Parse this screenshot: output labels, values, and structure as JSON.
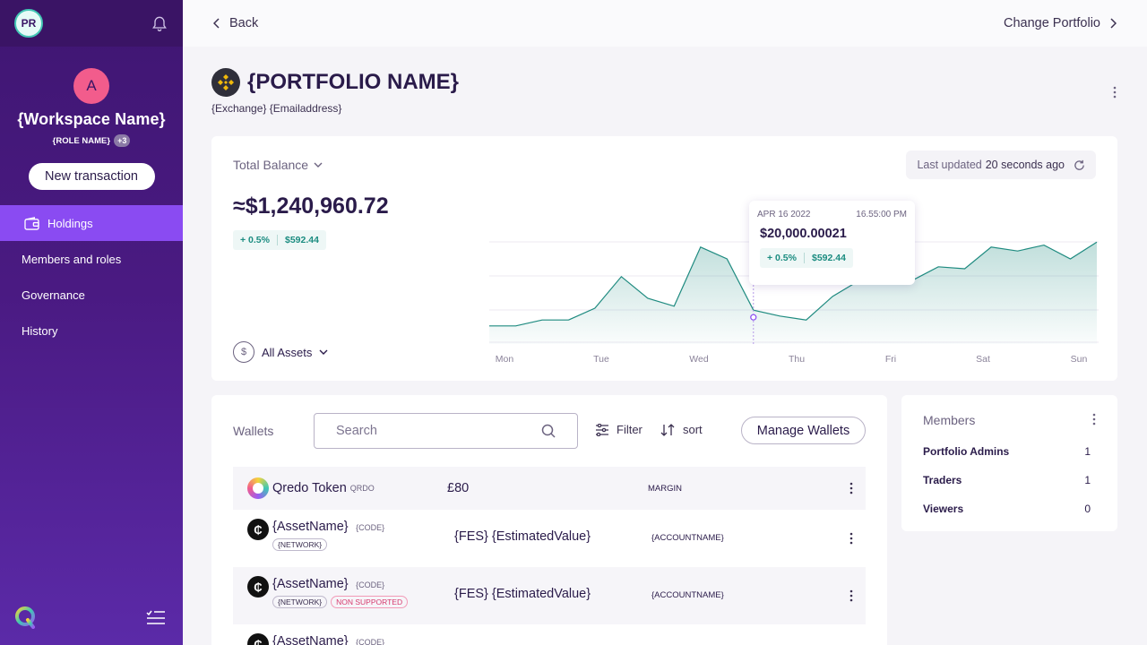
{
  "sidebar": {
    "user_initials": "PR",
    "workspace": {
      "initial": "A",
      "name": "{Workspace Name}",
      "role": "{ROLE NAME}",
      "role_extra": "+3"
    },
    "new_transaction": "New transaction",
    "nav": [
      {
        "label": "Holdings",
        "icon": "wallet-icon",
        "active": true
      },
      {
        "label": "Members and roles"
      },
      {
        "label": "Governance"
      },
      {
        "label": "History"
      }
    ]
  },
  "topbar": {
    "back": "Back",
    "change_portfolio": "Change Portfolio"
  },
  "portfolio": {
    "name": "{PORTFOLIO NAME}",
    "subtitle": "{Exchange} {Emailaddress}"
  },
  "balance": {
    "label": "Total Balance",
    "last_updated_label": "Last updated",
    "last_updated_value": "20 seconds ago",
    "value": "≈$1,240,960.72",
    "change_pct": "+ 0.5%",
    "change_amt": "$592.44",
    "asset_filter": "All Assets",
    "dollar_symbol": "$"
  },
  "tooltip": {
    "date": "APR 16 2022",
    "time": "16.55:00 PM",
    "value": "$20,000.00021",
    "change_pct": "+ 0.5%",
    "change_amt": "$592.44"
  },
  "chart_data": {
    "type": "area",
    "x_labels": [
      "Mon",
      "Tue",
      "Wed",
      "Thu",
      "Fri",
      "Sat",
      "Sun"
    ],
    "values": [
      12,
      12,
      18,
      18,
      30,
      62,
      40,
      32,
      92,
      80,
      28,
      22,
      18,
      42,
      58,
      62,
      58,
      72,
      70,
      92,
      88,
      94,
      80,
      97
    ],
    "highlight_index": 10,
    "color": "#1f8b80"
  },
  "wallets": {
    "title": "Wallets",
    "search_placeholder": "Search",
    "filter": "Filter",
    "sort": "sort",
    "manage": "Manage Wallets",
    "rows": [
      {
        "asset": "Qredo Token",
        "code": "QRDO",
        "value": "£80",
        "account": "MARGIN",
        "network": "",
        "unsupported": ""
      },
      {
        "asset": "{AssetName}",
        "code": "{CODE}",
        "value": "{FES} {EstimatedValue}",
        "account": "{ACCOUNTNAME}",
        "network": "{NETWORK}",
        "unsupported": ""
      },
      {
        "asset": "{AssetName}",
        "code": "{CODE}",
        "value": "{FES} {EstimatedValue}",
        "account": "{ACCOUNTNAME}",
        "network": "{NETWORK}",
        "unsupported": "NON SUPPORTED"
      },
      {
        "asset": "{AssetName}",
        "code": "{CODE}",
        "value": "",
        "account": "",
        "network": "",
        "unsupported": ""
      }
    ]
  },
  "members": {
    "title": "Members",
    "rows": [
      {
        "label": "Portfolio Admins",
        "count": "1"
      },
      {
        "label": "Traders",
        "count": "1"
      },
      {
        "label": "Viewers",
        "count": "0"
      }
    ]
  }
}
